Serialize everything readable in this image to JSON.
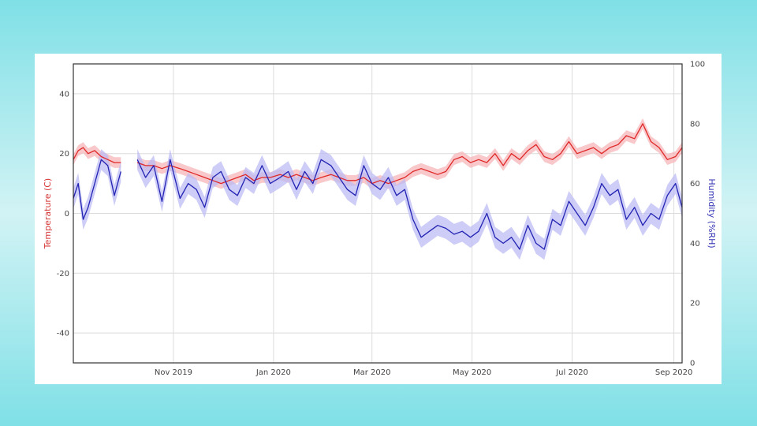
{
  "chart_data": {
    "type": "line",
    "title": "",
    "xlabel": "",
    "ylabel_left": "Temperature (C)",
    "ylabel_right": "Humidity (%RH)",
    "ylim_left": [
      -50,
      50
    ],
    "ylim_right": [
      0,
      100
    ],
    "yticks_left": [
      -40,
      -20,
      0,
      20,
      40
    ],
    "yticks_right": [
      0,
      20,
      40,
      60,
      80,
      100
    ],
    "xlim": [
      "2019-09-01",
      "2020-09-06"
    ],
    "xticks": [
      {
        "date": "2019-11-01",
        "label": "Nov 2019"
      },
      {
        "date": "2020-01-01",
        "label": "Jan 2020"
      },
      {
        "date": "2020-03-01",
        "label": "Mar 2020"
      },
      {
        "date": "2020-05-01",
        "label": "May 2020"
      },
      {
        "date": "2020-07-01",
        "label": "Jul 2020"
      },
      {
        "date": "2020-09-01",
        "label": "Sep 2020"
      }
    ],
    "grid": true,
    "colors": {
      "temperature": "#e02828",
      "temperature_band": "#f6b6b8",
      "humidity": "#2323b4",
      "humidity_band": "#bcbcf4",
      "left_axis_title": "#d63a3a",
      "right_axis_title": "#3434b4"
    },
    "series": [
      {
        "axis": "left",
        "x": [
          "2019-09-01",
          "2019-09-04",
          "2019-09-07",
          "2019-09-10",
          "2019-09-14",
          "2019-09-18",
          "2019-09-22",
          "2019-09-26",
          "2019-09-30",
          "2019-10-05",
          "2019-10-10",
          "2019-10-15",
          "2019-10-20",
          "2019-10-25",
          "2019-10-30",
          "2019-11-05",
          "2019-11-10",
          "2019-11-15",
          "2019-11-20",
          "2019-11-25",
          "2019-11-30",
          "2019-12-05",
          "2019-12-10",
          "2019-12-15",
          "2019-12-20",
          "2019-12-25",
          "2019-12-30",
          "2020-01-05",
          "2020-01-10",
          "2020-01-15",
          "2020-01-20",
          "2020-01-25",
          "2020-01-30",
          "2020-02-05",
          "2020-02-10",
          "2020-02-15",
          "2020-02-20",
          "2020-02-25",
          "2020-03-01",
          "2020-03-06",
          "2020-03-11",
          "2020-03-16",
          "2020-03-21",
          "2020-03-26",
          "2020-03-31",
          "2020-04-05",
          "2020-04-10",
          "2020-04-15",
          "2020-04-20",
          "2020-04-25",
          "2020-04-30",
          "2020-05-05",
          "2020-05-10",
          "2020-05-15",
          "2020-05-20",
          "2020-05-25",
          "2020-05-30",
          "2020-06-04",
          "2020-06-09",
          "2020-06-14",
          "2020-06-19",
          "2020-06-24",
          "2020-06-29",
          "2020-07-04",
          "2020-07-09",
          "2020-07-14",
          "2020-07-19",
          "2020-07-24",
          "2020-07-29",
          "2020-08-03",
          "2020-08-08",
          "2020-08-13",
          "2020-08-18",
          "2020-08-23",
          "2020-08-28",
          "2020-09-02",
          "2020-09-06"
        ],
        "y": [
          18,
          21,
          22,
          20,
          21,
          19,
          18,
          17,
          17,
          null,
          17,
          16,
          16,
          15,
          16,
          15,
          14,
          13,
          12,
          11,
          10,
          11,
          12,
          13,
          11,
          12,
          12,
          13,
          12,
          13,
          12,
          11,
          12,
          13,
          12,
          11,
          11,
          12,
          10,
          11,
          10,
          11,
          12,
          14,
          15,
          14,
          13,
          14,
          18,
          19,
          17,
          18,
          17,
          20,
          16,
          20,
          18,
          21,
          23,
          19,
          18,
          20,
          24,
          20,
          21,
          22,
          20,
          22,
          23,
          26,
          25,
          30,
          24,
          22,
          18,
          19,
          22
        ]
      },
      {
        "axis": "right",
        "x": [
          "2019-09-01",
          "2019-09-04",
          "2019-09-07",
          "2019-09-10",
          "2019-09-14",
          "2019-09-18",
          "2019-09-22",
          "2019-09-26",
          "2019-09-30",
          "2019-10-05",
          "2019-10-10",
          "2019-10-15",
          "2019-10-20",
          "2019-10-25",
          "2019-10-30",
          "2019-11-05",
          "2019-11-10",
          "2019-11-15",
          "2019-11-20",
          "2019-11-25",
          "2019-11-30",
          "2019-12-05",
          "2019-12-10",
          "2019-12-15",
          "2019-12-20",
          "2019-12-25",
          "2019-12-30",
          "2020-01-05",
          "2020-01-10",
          "2020-01-15",
          "2020-01-20",
          "2020-01-25",
          "2020-01-30",
          "2020-02-05",
          "2020-02-10",
          "2020-02-15",
          "2020-02-20",
          "2020-02-25",
          "2020-03-01",
          "2020-03-06",
          "2020-03-11",
          "2020-03-16",
          "2020-03-21",
          "2020-03-26",
          "2020-03-31",
          "2020-04-05",
          "2020-04-10",
          "2020-04-15",
          "2020-04-20",
          "2020-04-25",
          "2020-04-30",
          "2020-05-05",
          "2020-05-10",
          "2020-05-15",
          "2020-05-20",
          "2020-05-25",
          "2020-05-30",
          "2020-06-04",
          "2020-06-09",
          "2020-06-14",
          "2020-06-19",
          "2020-06-24",
          "2020-06-29",
          "2020-07-04",
          "2020-07-09",
          "2020-07-14",
          "2020-07-19",
          "2020-07-24",
          "2020-07-29",
          "2020-08-03",
          "2020-08-08",
          "2020-08-13",
          "2020-08-18",
          "2020-08-23",
          "2020-08-28",
          "2020-09-02",
          "2020-09-06"
        ],
        "y": [
          55,
          60,
          48,
          52,
          60,
          68,
          66,
          56,
          64,
          null,
          68,
          62,
          66,
          54,
          68,
          55,
          60,
          58,
          52,
          62,
          64,
          58,
          56,
          62,
          60,
          66,
          60,
          62,
          64,
          58,
          64,
          60,
          68,
          66,
          62,
          58,
          56,
          66,
          60,
          58,
          62,
          56,
          58,
          48,
          42,
          44,
          46,
          45,
          43,
          44,
          42,
          44,
          50,
          42,
          40,
          42,
          38,
          46,
          40,
          38,
          48,
          46,
          54,
          50,
          46,
          52,
          60,
          56,
          58,
          48,
          52,
          46,
          50,
          48,
          56,
          60,
          52
        ]
      }
    ]
  }
}
